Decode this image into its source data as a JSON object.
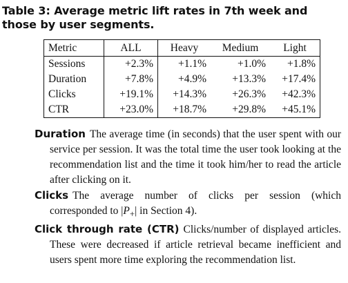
{
  "caption": "Table 3: Average metric lift rates in 7th week and those by user segments.",
  "table": {
    "headers": [
      "Metric",
      "ALL",
      "Heavy",
      "Medium",
      "Light"
    ],
    "rows": [
      [
        "Sessions",
        "+2.3%",
        "+1.1%",
        "+1.0%",
        "+1.8%"
      ],
      [
        "Duration",
        "+7.8%",
        "+4.9%",
        "+13.3%",
        "+17.4%"
      ],
      [
        "Clicks",
        "+19.1%",
        "+14.3%",
        "+26.3%",
        "+42.3%"
      ],
      [
        "CTR",
        "+23.0%",
        "+18.7%",
        "+29.8%",
        "+45.1%"
      ]
    ]
  },
  "definitions": [
    {
      "term": "Duration",
      "text": "The average time (in seconds) that the user spent with our service per session. It was the total time the user took looking at the recommendation list and the time it took him/her to read the article after clicking on it."
    },
    {
      "term": "Clicks",
      "text_before": "The average number of clicks per session (which corresponded to |",
      "math": "P",
      "math_sub": "+",
      "text_after": "| in Section 4)."
    },
    {
      "term": "Click through rate (CTR)",
      "text": "Clicks/number of displayed articles. These were decreased if article retrieval became inefficient and users spent more time exploring the recommendation list."
    }
  ]
}
